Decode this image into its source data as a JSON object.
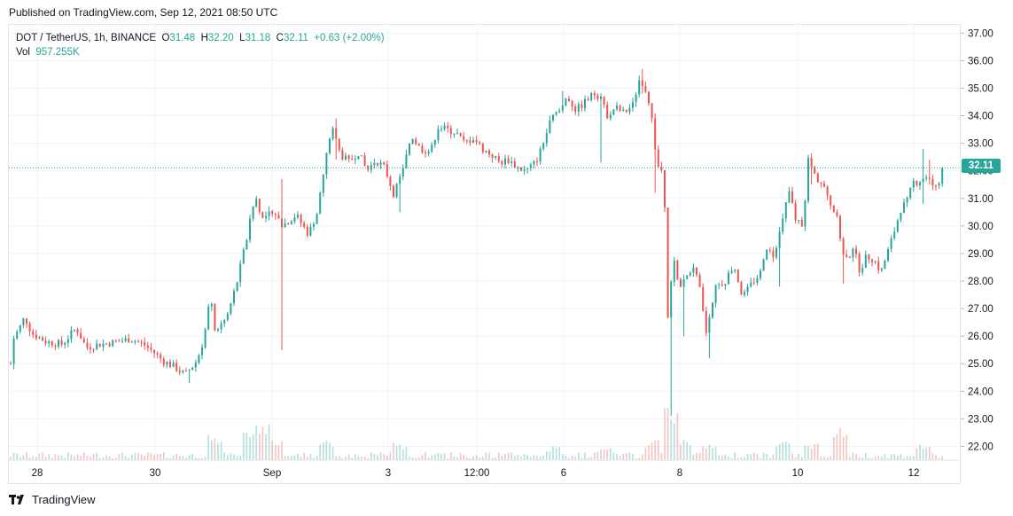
{
  "header": {
    "published": "Published on TradingView.com, Sep 12, 2021 08:50 UTC"
  },
  "legend": {
    "symbol": "DOT / TetherUS, 1h, BINANCE",
    "open_label": "O",
    "open": "31.48",
    "high_label": "H",
    "high": "32.20",
    "low_label": "L",
    "low": "31.18",
    "close_label": "C",
    "close": "32.11",
    "change": "+0.63 (+2.00%)",
    "vol_label": "Vol",
    "vol": "957.255K"
  },
  "last_price_label": "32.11",
  "footer": {
    "brand": "TradingView",
    "logo_icon": "tradingview-logo-icon"
  },
  "colors": {
    "up": "#26a69a",
    "down": "#ef5350",
    "grid": "#f0f3fa",
    "axis_text": "#131722"
  },
  "chart_data": {
    "type": "candlestick",
    "symbol": "DOT / TetherUS",
    "interval": "1h",
    "exchange": "BINANCE",
    "ylim": [
      21.5,
      37.3
    ],
    "y_ticks": [
      22,
      23,
      24,
      25,
      26,
      27,
      28,
      29,
      30,
      31,
      32,
      33,
      34,
      35,
      36,
      37
    ],
    "y_tick_labels": [
      "22.00",
      "23.00",
      "24.00",
      "25.00",
      "26.00",
      "27.00",
      "28.00",
      "29.00",
      "30.00",
      "31.00",
      "32.00",
      "33.00",
      "34.00",
      "35.00",
      "36.00",
      "37.00"
    ],
    "x_tick_labels": [
      "28",
      "30",
      "Sep",
      "3",
      "12:00",
      "6",
      "8",
      "10",
      "12"
    ],
    "last_price": 32.11,
    "close_path": [
      [
        0,
        25.0
      ],
      [
        3,
        25.9
      ],
      [
        10,
        26.3
      ],
      [
        16,
        26.7
      ],
      [
        24,
        26.1
      ],
      [
        40,
        25.8
      ],
      [
        58,
        25.7
      ],
      [
        74,
        26.3
      ],
      [
        85,
        25.6
      ],
      [
        100,
        25.7
      ],
      [
        120,
        25.8
      ],
      [
        135,
        25.9
      ],
      [
        150,
        25.7
      ],
      [
        162,
        25.4
      ],
      [
        172,
        25.1
      ],
      [
        184,
        24.9
      ],
      [
        197,
        24.6
      ],
      [
        210,
        25.1
      ],
      [
        218,
        25.9
      ],
      [
        225,
        27.4
      ],
      [
        232,
        26.0
      ],
      [
        245,
        26.8
      ],
      [
        255,
        27.9
      ],
      [
        268,
        29.8
      ],
      [
        276,
        31.1
      ],
      [
        285,
        30.2
      ],
      [
        296,
        30.6
      ],
      [
        306,
        30.0
      ],
      [
        322,
        30.4
      ],
      [
        336,
        29.7
      ],
      [
        346,
        30.5
      ],
      [
        356,
        32.5
      ],
      [
        362,
        33.6
      ],
      [
        372,
        32.6
      ],
      [
        382,
        32.3
      ],
      [
        392,
        32.7
      ],
      [
        402,
        32.0
      ],
      [
        412,
        32.4
      ],
      [
        422,
        32.1
      ],
      [
        432,
        31.2
      ],
      [
        442,
        31.9
      ],
      [
        452,
        33.3
      ],
      [
        462,
        32.8
      ],
      [
        474,
        32.7
      ],
      [
        482,
        33.6
      ],
      [
        492,
        33.5
      ],
      [
        502,
        33.4
      ],
      [
        512,
        33.0
      ],
      [
        522,
        33.2
      ],
      [
        532,
        32.8
      ],
      [
        542,
        32.6
      ],
      [
        552,
        32.3
      ],
      [
        562,
        32.4
      ],
      [
        572,
        32.1
      ],
      [
        582,
        32.0
      ],
      [
        592,
        32.3
      ],
      [
        600,
        32.9
      ],
      [
        610,
        33.9
      ],
      [
        620,
        34.2
      ],
      [
        628,
        34.7
      ],
      [
        638,
        34.2
      ],
      [
        648,
        34.5
      ],
      [
        658,
        34.8
      ],
      [
        666,
        34.7
      ],
      [
        672,
        34.0
      ],
      [
        682,
        34.3
      ],
      [
        692,
        34.1
      ],
      [
        702,
        34.4
      ],
      [
        710,
        35.4
      ],
      [
        716,
        35.0
      ],
      [
        722,
        34.3
      ],
      [
        727,
        32.9
      ],
      [
        732,
        31.9
      ],
      [
        737,
        32.2
      ],
      [
        741,
        26.6
      ],
      [
        748,
        28.8
      ],
      [
        754,
        27.7
      ],
      [
        762,
        28.1
      ],
      [
        770,
        28.6
      ],
      [
        778,
        27.6
      ],
      [
        784,
        26.1
      ],
      [
        790,
        26.8
      ],
      [
        796,
        27.8
      ],
      [
        806,
        28.0
      ],
      [
        816,
        28.6
      ],
      [
        826,
        27.4
      ],
      [
        836,
        27.9
      ],
      [
        846,
        28.3
      ],
      [
        852,
        29.3
      ],
      [
        860,
        28.9
      ],
      [
        870,
        30.0
      ],
      [
        878,
        31.3
      ],
      [
        886,
        30.2
      ],
      [
        894,
        30.1
      ],
      [
        900,
        32.4
      ],
      [
        908,
        31.8
      ],
      [
        916,
        31.5
      ],
      [
        924,
        30.9
      ],
      [
        932,
        30.3
      ],
      [
        938,
        29.2
      ],
      [
        944,
        28.7
      ],
      [
        950,
        29.3
      ],
      [
        958,
        28.4
      ],
      [
        966,
        28.9
      ],
      [
        974,
        28.8
      ],
      [
        982,
        28.3
      ],
      [
        990,
        29.1
      ],
      [
        998,
        29.9
      ],
      [
        1004,
        30.6
      ],
      [
        1012,
        30.9
      ],
      [
        1018,
        31.6
      ],
      [
        1024,
        31.6
      ],
      [
        1032,
        31.8
      ],
      [
        1040,
        31.5
      ],
      [
        1047,
        31.5
      ],
      [
        1052,
        32.11
      ]
    ],
    "spikes": [
      [
        3,
        24.8,
        25.9
      ],
      [
        200,
        24.3,
        24.8
      ],
      [
        305,
        25.5,
        31.7
      ],
      [
        366,
        32.4,
        33.9
      ],
      [
        438,
        30.5,
        31.9
      ],
      [
        623,
        34.4,
        34.9
      ],
      [
        667,
        32.3,
        34.3
      ],
      [
        713,
        34.8,
        35.7
      ],
      [
        727,
        31.2,
        33.0
      ],
      [
        744,
        23.1,
        26.6
      ],
      [
        760,
        26.0,
        28.0
      ],
      [
        788,
        25.2,
        26.5
      ],
      [
        866,
        27.8,
        29.0
      ],
      [
        904,
        31.5,
        32.6
      ],
      [
        940,
        27.9,
        29.5
      ],
      [
        1031,
        30.8,
        32.8
      ],
      [
        1037,
        31.5,
        32.4
      ]
    ],
    "volume_bursts": [
      [
        270,
        0.65
      ],
      [
        285,
        0.75
      ],
      [
        232,
        0.45
      ],
      [
        300,
        0.4
      ],
      [
        357,
        0.35
      ],
      [
        438,
        0.3
      ],
      [
        612,
        0.25
      ],
      [
        668,
        0.22
      ],
      [
        724,
        0.35
      ],
      [
        744,
        1.0
      ],
      [
        755,
        0.45
      ],
      [
        788,
        0.3
      ],
      [
        870,
        0.35
      ],
      [
        902,
        0.3
      ],
      [
        936,
        0.65
      ],
      [
        1029,
        0.3
      ],
      [
        760,
        0.3
      ]
    ]
  }
}
